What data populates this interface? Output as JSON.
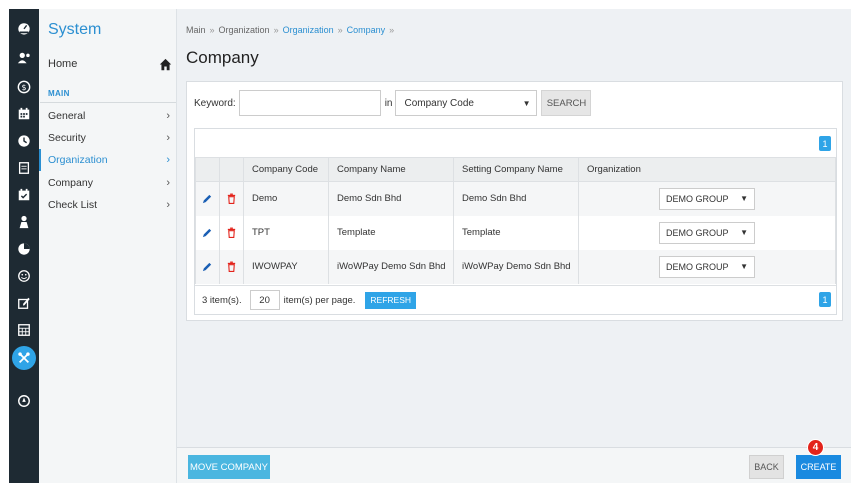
{
  "rail": {
    "icons": [
      "dashboard-icon",
      "user-medal-icon",
      "payroll-icon",
      "calendar-icon",
      "clock-icon",
      "document-icon",
      "leave-icon",
      "person-icon",
      "pie-icon",
      "smiley-icon",
      "edit-document-icon",
      "table-icon",
      "tools-icon",
      "compass-icon"
    ],
    "active_icon": "tools-icon"
  },
  "sidemenu": {
    "title": "System",
    "home_label": "Home",
    "section_label": "MAIN",
    "items": [
      {
        "label": "General",
        "active": false
      },
      {
        "label": "Security",
        "active": false
      },
      {
        "label": "Organization",
        "active": true
      },
      {
        "label": "Company",
        "active": false
      },
      {
        "label": "Check List",
        "active": false
      }
    ]
  },
  "breadcrumb": [
    "Main",
    "Organization",
    "Organization",
    "Company"
  ],
  "page_title": "Company",
  "search": {
    "keyword_label": "Keyword:",
    "keyword_value": "",
    "in_label": "in",
    "field_selected": "Company Code",
    "search_label": "SEARCH"
  },
  "grid": {
    "page_top": "1",
    "page_bottom": "1",
    "columns": [
      "",
      "",
      "Company Code",
      "Company Name",
      "Setting Company Name",
      "Organization"
    ],
    "rows": [
      {
        "code": "Demo",
        "name": "Demo Sdn Bhd",
        "setting_name": "Demo Sdn Bhd",
        "organization": "DEMO GROUP"
      },
      {
        "code": "TPT",
        "name": "Template",
        "setting_name": "Template",
        "organization": "DEMO GROUP"
      },
      {
        "code": "IWOWPAY",
        "name": "iWoWPay Demo Sdn Bhd",
        "setting_name": "iWoWPay Demo Sdn Bhd",
        "organization": "DEMO GROUP"
      }
    ],
    "items_count": "3 item(s).",
    "per_page_value": "20",
    "per_page_label": "item(s) per page.",
    "refresh_label": "REFRESH"
  },
  "bottombar": {
    "move_label": "MOVE COMPANY",
    "back_label": "BACK",
    "create_label": "CREATE",
    "step_badge": "4"
  },
  "colors": {
    "accent": "#2fa4e7",
    "rail_bg": "#1e2a33",
    "delete": "#e3231b",
    "badge": "#e3231b"
  }
}
